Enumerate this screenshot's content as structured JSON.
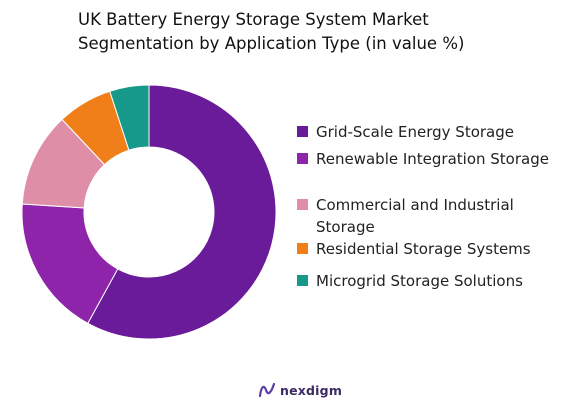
{
  "title": "UK Battery Energy Storage System Market Segmentation by Application Type (in value %)",
  "chart_data": {
    "type": "pie",
    "donut": true,
    "title": "UK Battery Energy Storage System Market Segmentation by Application Type (in value %)",
    "legend_position": "right",
    "categories": [
      "Grid-Scale Energy Storage",
      "Renewable Integration Storage",
      "Commercial and Industrial Storage",
      "Residential Storage Systems",
      "Microgrid Storage Solutions"
    ],
    "values": [
      58,
      18,
      12,
      7,
      5
    ],
    "colors": [
      "#6a1b9a",
      "#8e24aa",
      "#de8ea6",
      "#f07f19",
      "#16998a"
    ]
  },
  "logo": {
    "text": "nexdigm"
  }
}
